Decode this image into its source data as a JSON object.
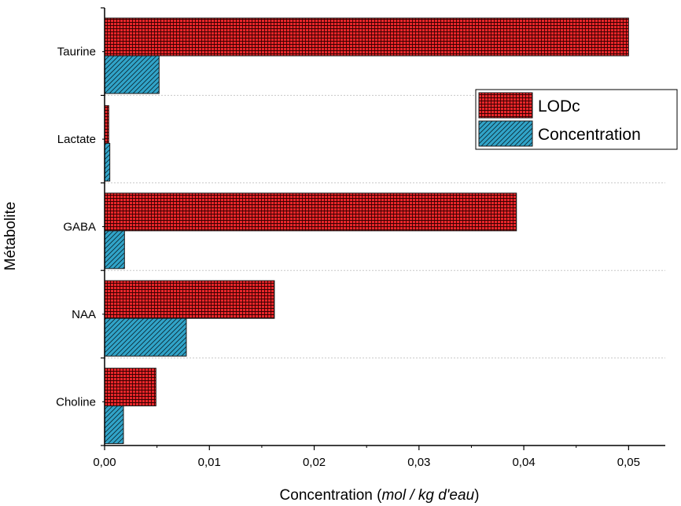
{
  "chart_data": {
    "type": "bar",
    "orientation": "horizontal",
    "categories": [
      "Choline",
      "NAA",
      "GABA",
      "Lactate",
      "Taurine"
    ],
    "series": [
      {
        "name": "LODc",
        "values": [
          0.0049,
          0.0162,
          0.0393,
          0.0004,
          0.05
        ],
        "color": "#e8262a",
        "pattern": "crosshatch"
      },
      {
        "name": "Concentration",
        "values": [
          0.0018,
          0.0078,
          0.0019,
          0.0005,
          0.0052
        ],
        "color": "#31a4c9",
        "pattern": "diagonal"
      }
    ],
    "xlabel_prefix": "Concentration (",
    "xlabel_units": "mol / kg d'eau",
    "xlabel_suffix": ")",
    "ylabel": "Métabolite",
    "xlim": [
      0,
      0.0535
    ],
    "xticks": [
      0,
      0.01,
      0.02,
      0.03,
      0.04,
      0.05
    ],
    "xtick_labels": [
      "0,00",
      "0,01",
      "0,02",
      "0,03",
      "0,04",
      "0,05"
    ],
    "grid": "dashed horizontal separators",
    "legend": "top-right"
  }
}
